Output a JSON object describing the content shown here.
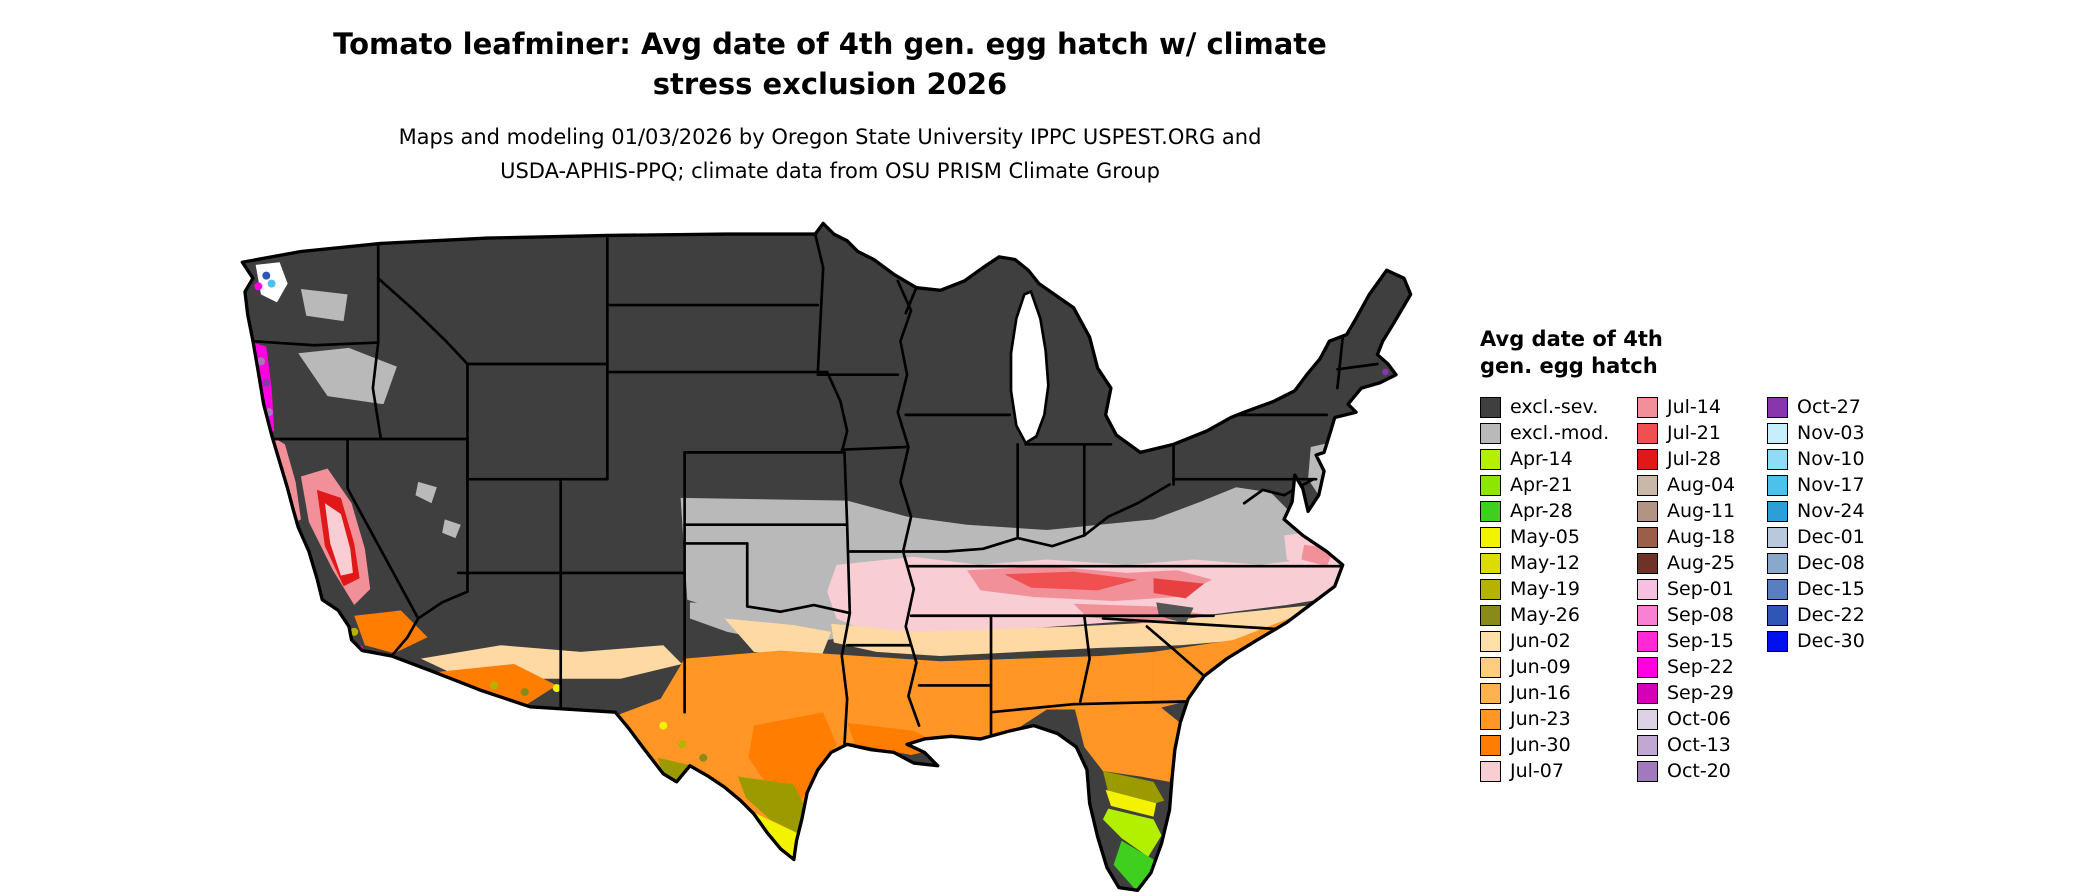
{
  "header": {
    "title_line1": "Tomato leafminer: Avg date of 4th gen. egg hatch w/ climate",
    "title_line2": "stress exclusion 2026",
    "subtitle_line1": "Maps and modeling 01/03/2026 by Oregon State University IPPC USPEST.ORG and",
    "subtitle_line2": "USDA-APHIS-PPQ; climate data from OSU PRISM Climate Group"
  },
  "legend": {
    "title_line1": "Avg date of 4th",
    "title_line2": "gen. egg hatch",
    "columns": [
      [
        {
          "label": "excl.-sev.",
          "color": "#3f3f3f"
        },
        {
          "label": "excl.-mod.",
          "color": "#b9b9b9"
        },
        {
          "label": "Apr-14",
          "color": "#b3f000"
        },
        {
          "label": "Apr-21",
          "color": "#8ce600"
        },
        {
          "label": "Apr-28",
          "color": "#3ecf1f"
        },
        {
          "label": "May-05",
          "color": "#f3f300"
        },
        {
          "label": "May-12",
          "color": "#dcdc00"
        },
        {
          "label": "May-19",
          "color": "#b4b400"
        },
        {
          "label": "May-26",
          "color": "#8a8a1a"
        },
        {
          "label": "Jun-02",
          "color": "#ffe0a8"
        },
        {
          "label": "Jun-09",
          "color": "#ffcc80"
        },
        {
          "label": "Jun-16",
          "color": "#ffb24d"
        },
        {
          "label": "Jun-23",
          "color": "#ff9626"
        },
        {
          "label": "Jun-30",
          "color": "#ff7d00"
        },
        {
          "label": "Jul-07",
          "color": "#f8cdd3"
        }
      ],
      [
        {
          "label": "Jul-14",
          "color": "#f2909a"
        },
        {
          "label": "Jul-21",
          "color": "#f05050"
        },
        {
          "label": "Jul-28",
          "color": "#e01818"
        },
        {
          "label": "Aug-04",
          "color": "#c9b8a8"
        },
        {
          "label": "Aug-11",
          "color": "#b39384"
        },
        {
          "label": "Aug-18",
          "color": "#9a5f46"
        },
        {
          "label": "Aug-25",
          "color": "#6e3226"
        },
        {
          "label": "Sep-01",
          "color": "#f8c0e0"
        },
        {
          "label": "Sep-08",
          "color": "#f781d2"
        },
        {
          "label": "Sep-15",
          "color": "#ff2ad4"
        },
        {
          "label": "Sep-22",
          "color": "#ff00e0"
        },
        {
          "label": "Sep-29",
          "color": "#d400b8"
        },
        {
          "label": "Oct-06",
          "color": "#ddd1e6"
        },
        {
          "label": "Oct-13",
          "color": "#c0a8d2"
        },
        {
          "label": "Oct-20",
          "color": "#a379bd"
        }
      ],
      [
        {
          "label": "Oct-27",
          "color": "#8936ad"
        },
        {
          "label": "Nov-03",
          "color": "#c8eefb"
        },
        {
          "label": "Nov-10",
          "color": "#8edcf5"
        },
        {
          "label": "Nov-17",
          "color": "#4cc2ea"
        },
        {
          "label": "Nov-24",
          "color": "#2e9ed6"
        },
        {
          "label": "Dec-01",
          "color": "#b9c9dd"
        },
        {
          "label": "Dec-08",
          "color": "#8aa7cc"
        },
        {
          "label": "Dec-15",
          "color": "#5a7fc0"
        },
        {
          "label": "Dec-22",
          "color": "#2f55b5"
        },
        {
          "label": "Dec-30",
          "color": "#0011ee"
        }
      ]
    ]
  }
}
